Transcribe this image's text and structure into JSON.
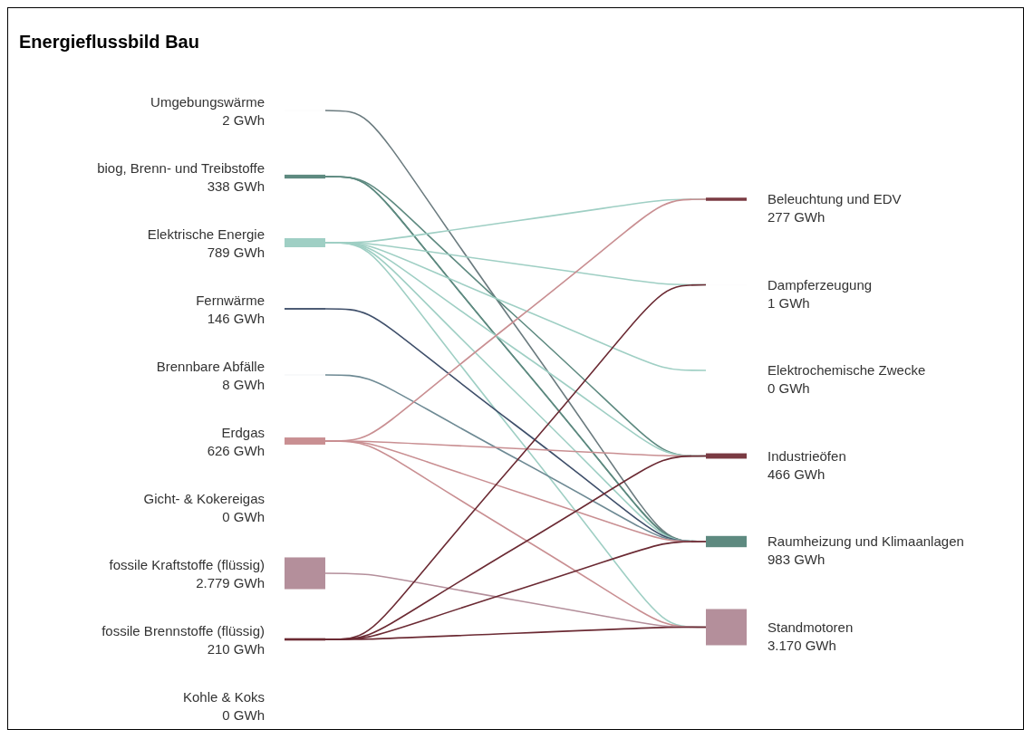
{
  "chart_data": {
    "type": "other",
    "title": "Energieflussbild Bau",
    "categories": [
      "Umgebungswärme",
      "biog, Brenn- und Treibstoffe",
      "Elektrische Energie",
      "Fernwärme",
      "Brennbare Abfälle",
      "Erdgas",
      "Gicht- & Kokereigas",
      "fossile Kraftstoffe (flüssig)",
      "fossile Brennstoffe (flüssig)",
      "Kohle & Koks",
      "Beleuchtung und EDV",
      "Dampferzeugung",
      "Elektrochemische Zwecke",
      "Industrieöfen",
      "Raumheizung und Klimaanlagen",
      "Standmotoren"
    ],
    "series": [
      {
        "values": [
          2,
          338,
          789,
          146,
          8,
          626,
          0,
          2779,
          210,
          0,
          null,
          null,
          null,
          null,
          null,
          null
        ],
        "value_labels": [
          "2 GWh",
          "338 GWh",
          "789 GWh",
          "146 GWh",
          "8 GWh",
          "626 GWh",
          "0 GWh",
          "2.779 GWh",
          "210 GWh",
          "0 GWh",
          null,
          null,
          null,
          null,
          null,
          null
        ],
        "colors": [
          "#6b7b7f",
          "#5e8a80",
          "#9fcfc4",
          "#3f4f6a",
          "#6e8a94",
          "#c98f92",
          "#888888",
          "#b48f9b",
          "#6b2a33",
          "#555555",
          null,
          null,
          null,
          null,
          null,
          null
        ]
      },
      {
        "values": [
          null,
          null,
          null,
          null,
          null,
          null,
          null,
          null,
          null,
          null,
          277,
          1,
          0,
          466,
          983,
          3170
        ],
        "value_labels": [
          null,
          null,
          null,
          null,
          null,
          null,
          null,
          null,
          null,
          null,
          "277 GWh",
          "1 GWh",
          "0 GWh",
          "466 GWh",
          "983 GWh",
          "3.170 GWh"
        ],
        "colors": [
          null,
          null,
          null,
          null,
          null,
          null,
          null,
          null,
          null,
          null,
          "#7a3a42",
          "#7a3a42",
          "#9fcfc4",
          "#7a3a42",
          "#5e8a80",
          "#b48f9b"
        ]
      }
    ]
  }
}
